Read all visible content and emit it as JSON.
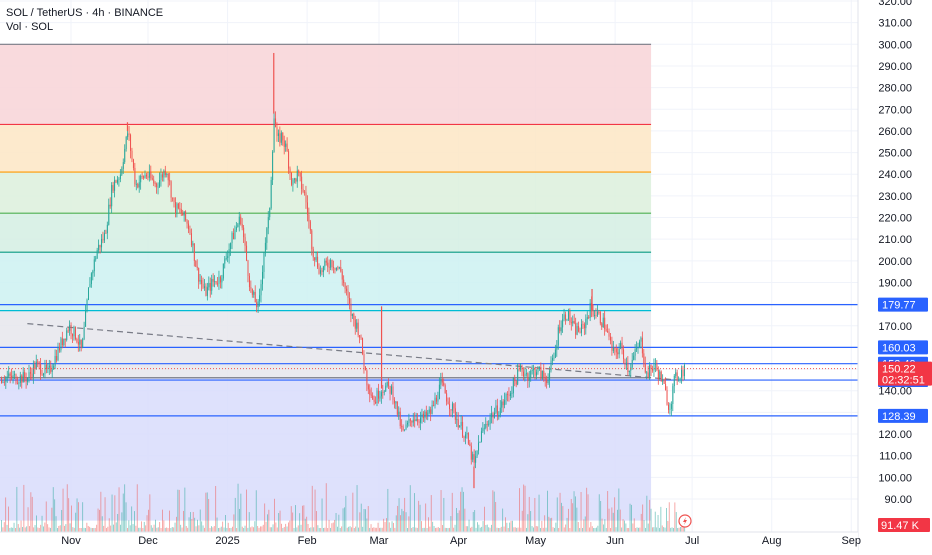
{
  "header": {
    "symbol_line": "SOL / TetherUS · 4h · BINANCE",
    "volume_line": "Vol · SOL"
  },
  "colors": {
    "up": "#26a69a",
    "down": "#ef5350",
    "axis_text": "#131722",
    "grid": "#f0f3fa",
    "level_line_blue": "#2962ff",
    "price_label_red": "#f23645"
  },
  "chart_data": {
    "type": "candlestick",
    "title": "SOL / TetherUS · 4h · BINANCE",
    "ylim": [
      80,
      325
    ],
    "y_ticks": [
      90,
      100,
      110,
      120,
      130,
      140,
      150,
      160,
      170,
      180,
      190,
      200,
      210,
      220,
      230,
      240,
      250,
      260,
      270,
      280,
      290,
      300,
      310,
      320
    ],
    "y_tick_labels": [
      "90.00",
      "100.00",
      "110.00",
      "120.00",
      "130.00",
      "140.00",
      "150.00",
      "160.00",
      "170.00",
      "180.00",
      "190.00",
      "200.00",
      "210.00",
      "220.00",
      "230.00",
      "240.00",
      "250.00",
      "260.00",
      "270.00",
      "280.00",
      "290.00",
      "300.00",
      "310.00",
      "320.00"
    ],
    "x_ticks": [
      {
        "label": "Nov",
        "date": "2024-11-01"
      },
      {
        "label": "Dec",
        "date": "2024-12-01"
      },
      {
        "label": "2025",
        "date": "2025-01-01"
      },
      {
        "label": "Feb",
        "date": "2025-02-01"
      },
      {
        "label": "Mar",
        "date": "2025-03-01"
      },
      {
        "label": "Apr",
        "date": "2025-04-01"
      },
      {
        "label": "May",
        "date": "2025-05-01"
      },
      {
        "label": "Jun",
        "date": "2025-06-01"
      },
      {
        "label": "Jul",
        "date": "2025-07-01"
      },
      {
        "label": "Aug",
        "date": "2025-08-01"
      },
      {
        "label": "Sep",
        "date": "2025-09-01"
      }
    ],
    "fib_levels": [
      300,
      263,
      241,
      222,
      204,
      177,
      146
    ],
    "fib_zone_end_date": "2025-06-15",
    "fib_zone_colors": [
      "#f8d4d7",
      "#fde6c4",
      "#dcf0dc",
      "#d3eee3",
      "#ccf1f1",
      "#e6e6ec",
      "#d8dcfb"
    ],
    "fib_line_colors": [
      "#787b86",
      "#f23645",
      "#ff9800",
      "#4caf50",
      "#089981",
      "#00bcd4",
      "#787b86",
      "#787b86"
    ],
    "blue_levels": [
      {
        "value": 179.77,
        "label": "179.77"
      },
      {
        "value": 160.03,
        "label": "160.03"
      },
      {
        "value": 152.49,
        "label": "152.49"
      },
      {
        "value": 144.94,
        "label": "144.94"
      },
      {
        "value": 128.39,
        "label": "128.39"
      }
    ],
    "current_price": {
      "value": 150.22,
      "label": "150.22",
      "countdown": "02:32:51"
    },
    "volume_label": "91.47 K",
    "trendline": {
      "start": {
        "date": "2024-10-15",
        "value": 171
      },
      "end": {
        "date": "2025-06-25",
        "value": 145
      }
    },
    "price_path": [
      {
        "date": "2024-10-15",
        "value": 146
      },
      {
        "date": "2024-10-18",
        "value": 152
      },
      {
        "date": "2024-10-23",
        "value": 148
      },
      {
        "date": "2024-10-28",
        "value": 162
      },
      {
        "date": "2024-10-31",
        "value": 170
      },
      {
        "date": "2024-11-03",
        "value": 165
      },
      {
        "date": "2024-11-05",
        "value": 158
      },
      {
        "date": "2024-11-08",
        "value": 190
      },
      {
        "date": "2024-11-11",
        "value": 205
      },
      {
        "date": "2024-11-14",
        "value": 212
      },
      {
        "date": "2024-11-17",
        "value": 235
      },
      {
        "date": "2024-11-20",
        "value": 240
      },
      {
        "date": "2024-11-23",
        "value": 260
      },
      {
        "date": "2024-11-26",
        "value": 235
      },
      {
        "date": "2024-11-30",
        "value": 240
      },
      {
        "date": "2024-12-04",
        "value": 235
      },
      {
        "date": "2024-12-08",
        "value": 243
      },
      {
        "date": "2024-12-11",
        "value": 225
      },
      {
        "date": "2024-12-14",
        "value": 222
      },
      {
        "date": "2024-12-17",
        "value": 215
      },
      {
        "date": "2024-12-20",
        "value": 195
      },
      {
        "date": "2024-12-23",
        "value": 185
      },
      {
        "date": "2024-12-26",
        "value": 190
      },
      {
        "date": "2024-12-29",
        "value": 192
      },
      {
        "date": "2025-01-01",
        "value": 205
      },
      {
        "date": "2025-01-04",
        "value": 215
      },
      {
        "date": "2025-01-06",
        "value": 220
      },
      {
        "date": "2025-01-08",
        "value": 202
      },
      {
        "date": "2025-01-10",
        "value": 185
      },
      {
        "date": "2025-01-13",
        "value": 178
      },
      {
        "date": "2025-01-15",
        "value": 205
      },
      {
        "date": "2025-01-17",
        "value": 220
      },
      {
        "date": "2025-01-19",
        "value": 268
      },
      {
        "date": "2025-01-20",
        "value": 255
      },
      {
        "date": "2025-01-22",
        "value": 258
      },
      {
        "date": "2025-01-24",
        "value": 250
      },
      {
        "date": "2025-01-26",
        "value": 235
      },
      {
        "date": "2025-01-28",
        "value": 240
      },
      {
        "date": "2025-01-31",
        "value": 230
      },
      {
        "date": "2025-02-03",
        "value": 205
      },
      {
        "date": "2025-02-06",
        "value": 195
      },
      {
        "date": "2025-02-10",
        "value": 200
      },
      {
        "date": "2025-02-14",
        "value": 195
      },
      {
        "date": "2025-02-18",
        "value": 175
      },
      {
        "date": "2025-02-21",
        "value": 168
      },
      {
        "date": "2025-02-24",
        "value": 145
      },
      {
        "date": "2025-02-27",
        "value": 135
      },
      {
        "date": "2025-03-01",
        "value": 140
      },
      {
        "date": "2025-03-03",
        "value": 142
      },
      {
        "date": "2025-03-06",
        "value": 140
      },
      {
        "date": "2025-03-10",
        "value": 120
      },
      {
        "date": "2025-03-14",
        "value": 128
      },
      {
        "date": "2025-03-18",
        "value": 127
      },
      {
        "date": "2025-03-21",
        "value": 130
      },
      {
        "date": "2025-03-25",
        "value": 143
      },
      {
        "date": "2025-03-28",
        "value": 135
      },
      {
        "date": "2025-04-01",
        "value": 125
      },
      {
        "date": "2025-04-04",
        "value": 118
      },
      {
        "date": "2025-04-07",
        "value": 105
      },
      {
        "date": "2025-04-09",
        "value": 118
      },
      {
        "date": "2025-04-13",
        "value": 128
      },
      {
        "date": "2025-04-17",
        "value": 132
      },
      {
        "date": "2025-04-21",
        "value": 140
      },
      {
        "date": "2025-04-25",
        "value": 150
      },
      {
        "date": "2025-04-28",
        "value": 147
      },
      {
        "date": "2025-05-01",
        "value": 150
      },
      {
        "date": "2025-05-05",
        "value": 145
      },
      {
        "date": "2025-05-08",
        "value": 155
      },
      {
        "date": "2025-05-10",
        "value": 170
      },
      {
        "date": "2025-05-13",
        "value": 176
      },
      {
        "date": "2025-05-16",
        "value": 168
      },
      {
        "date": "2025-05-19",
        "value": 168
      },
      {
        "date": "2025-05-22",
        "value": 178
      },
      {
        "date": "2025-05-25",
        "value": 175
      },
      {
        "date": "2025-05-28",
        "value": 170
      },
      {
        "date": "2025-05-31",
        "value": 157
      },
      {
        "date": "2025-06-03",
        "value": 160
      },
      {
        "date": "2025-06-06",
        "value": 150
      },
      {
        "date": "2025-06-09",
        "value": 158
      },
      {
        "date": "2025-06-11",
        "value": 163
      },
      {
        "date": "2025-06-13",
        "value": 147
      },
      {
        "date": "2025-06-16",
        "value": 152
      },
      {
        "date": "2025-06-19",
        "value": 145
      },
      {
        "date": "2025-06-22",
        "value": 132
      },
      {
        "date": "2025-06-24",
        "value": 145
      },
      {
        "date": "2025-06-26",
        "value": 148
      },
      {
        "date": "2025-06-28",
        "value": 150.22
      }
    ],
    "spikes": [
      {
        "date": "2025-01-19",
        "value": 296
      },
      {
        "date": "2024-11-23",
        "value": 264
      },
      {
        "date": "2025-03-02",
        "value": 179
      },
      {
        "date": "2025-04-07",
        "value": 95
      },
      {
        "date": "2025-05-23",
        "value": 187
      }
    ]
  }
}
